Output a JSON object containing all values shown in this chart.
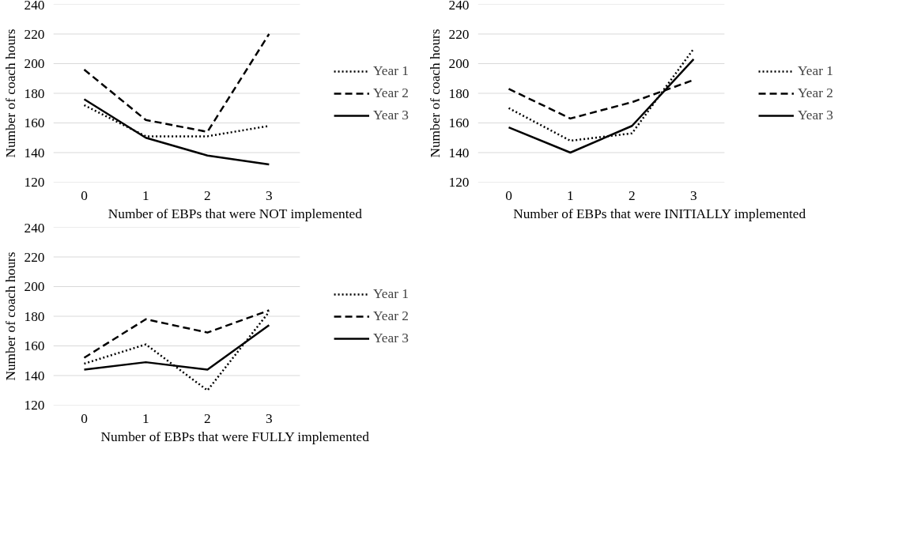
{
  "chart_data": [
    {
      "type": "line",
      "xlabel": "Number of EBPs that were NOT implemented",
      "ylabel": "Number of coach hours",
      "categories": [
        "0",
        "1",
        "2",
        "3"
      ],
      "ylim": [
        120,
        240
      ],
      "yticks": [
        120,
        140,
        160,
        180,
        200,
        220,
        240
      ],
      "grid": "y",
      "legend": "right",
      "marker": "none",
      "series": [
        {
          "name": "Year 1",
          "color": "#000000",
          "line_style": "dotted",
          "values": [
            172,
            151,
            151,
            158
          ]
        },
        {
          "name": "Year 2",
          "color": "#000000",
          "line_style": "dashed",
          "values": [
            196,
            162,
            154,
            220
          ]
        },
        {
          "name": "Year 3",
          "color": "#000000",
          "line_style": "solid",
          "values": [
            176,
            150,
            138,
            132
          ]
        }
      ]
    },
    {
      "type": "line",
      "xlabel": "Number of EBPs that were INITIALLY implemented",
      "ylabel": "Number of coach hours",
      "categories": [
        "0",
        "1",
        "2",
        "3"
      ],
      "ylim": [
        120,
        240
      ],
      "yticks": [
        120,
        140,
        160,
        180,
        200,
        220,
        240
      ],
      "grid": "y",
      "legend": "right",
      "marker": "none",
      "series": [
        {
          "name": "Year 1",
          "color": "#000000",
          "line_style": "dotted",
          "values": [
            170,
            148,
            153,
            210
          ]
        },
        {
          "name": "Year 2",
          "color": "#000000",
          "line_style": "dashed",
          "values": [
            183,
            163,
            174,
            189
          ]
        },
        {
          "name": "Year 3",
          "color": "#000000",
          "line_style": "solid",
          "values": [
            157,
            140,
            158,
            203
          ]
        }
      ]
    },
    {
      "type": "line",
      "xlabel": "Number of EBPs that were FULLY implemented",
      "ylabel": "Number of coach hours",
      "categories": [
        "0",
        "1",
        "2",
        "3"
      ],
      "ylim": [
        120,
        240
      ],
      "yticks": [
        120,
        140,
        160,
        180,
        200,
        220,
        240
      ],
      "grid": "y",
      "legend": "right",
      "marker": "none",
      "series": [
        {
          "name": "Year 1",
          "color": "#000000",
          "line_style": "dotted",
          "values": [
            148,
            161,
            130,
            183
          ]
        },
        {
          "name": "Year 2",
          "color": "#000000",
          "line_style": "dashed",
          "values": [
            152,
            178,
            169,
            184
          ]
        },
        {
          "name": "Year 3",
          "color": "#000000",
          "line_style": "solid",
          "values": [
            144,
            149,
            144,
            174
          ]
        }
      ]
    }
  ]
}
